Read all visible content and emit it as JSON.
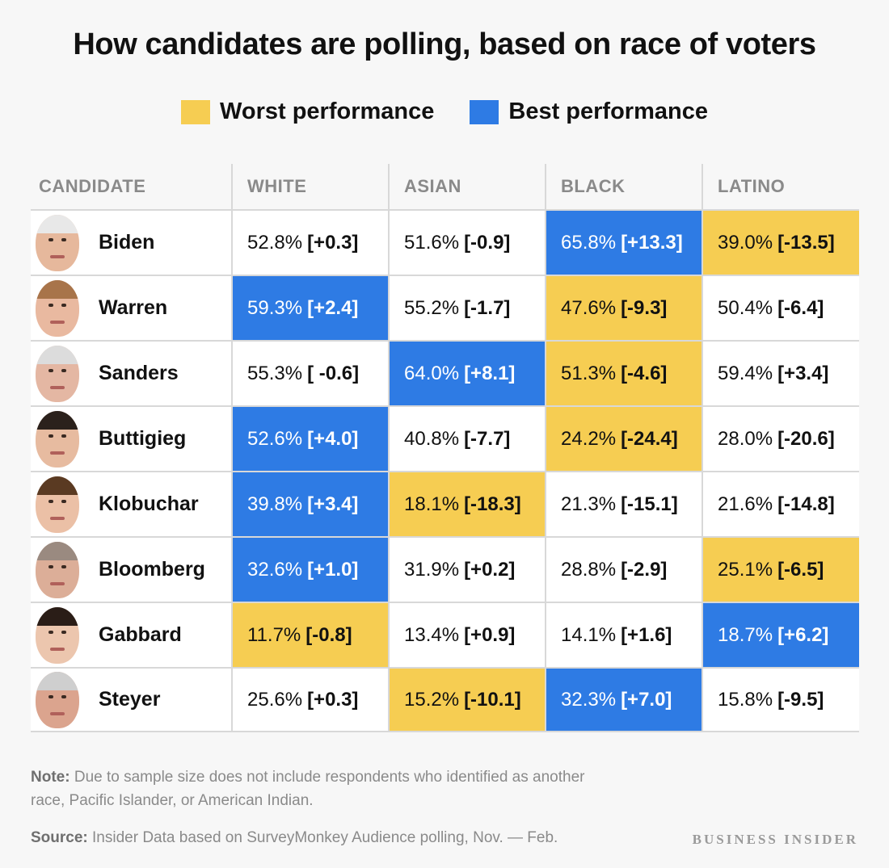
{
  "title": "How candidates are polling, based on race of voters",
  "legend": [
    {
      "label": "Worst performance",
      "color": "#f6cd52"
    },
    {
      "label": "Best performance",
      "color": "#2e7be4"
    }
  ],
  "chart_data": {
    "type": "table",
    "title": "How candidates are polling, based on race of voters",
    "columns": [
      "CANDIDATE",
      "WHITE",
      "ASIAN",
      "BLACK",
      "LATINO"
    ],
    "rows": [
      {
        "candidate": "Biden",
        "hair": "#e8e8e8",
        "skin": "#e6b89c",
        "cells": [
          {
            "value": "52.8%",
            "diff": "[+0.3]",
            "highlight": "none"
          },
          {
            "value": "51.6%",
            "diff": "[-0.9]",
            "highlight": "none"
          },
          {
            "value": "65.8%",
            "diff": "[+13.3]",
            "highlight": "best"
          },
          {
            "value": "39.0%",
            "diff": "[-13.5]",
            "highlight": "worst"
          }
        ]
      },
      {
        "candidate": "Warren",
        "hair": "#a8744a",
        "skin": "#e9b9a0",
        "cells": [
          {
            "value": "59.3%",
            "diff": "[+2.4]",
            "highlight": "best"
          },
          {
            "value": "55.2%",
            "diff": "[-1.7]",
            "highlight": "none"
          },
          {
            "value": "47.6%",
            "diff": "[-9.3]",
            "highlight": "worst"
          },
          {
            "value": "50.4%",
            "diff": "[-6.4]",
            "highlight": "none"
          }
        ]
      },
      {
        "candidate": "Sanders",
        "hair": "#dcdcdc",
        "skin": "#e4b7a3",
        "cells": [
          {
            "value": "55.3%",
            "diff": "[ -0.6]",
            "highlight": "none"
          },
          {
            "value": "64.0%",
            "diff": "[+8.1]",
            "highlight": "best"
          },
          {
            "value": "51.3%",
            "diff": "[-4.6]",
            "highlight": "worst"
          },
          {
            "value": "59.4%",
            "diff": "[+3.4]",
            "highlight": "none"
          }
        ]
      },
      {
        "candidate": "Buttigieg",
        "hair": "#2b211c",
        "skin": "#e7bba0",
        "cells": [
          {
            "value": "52.6%",
            "diff": "[+4.0]",
            "highlight": "best"
          },
          {
            "value": "40.8%",
            "diff": "[-7.7]",
            "highlight": "none"
          },
          {
            "value": "24.2%",
            "diff": "[-24.4]",
            "highlight": "worst"
          },
          {
            "value": "28.0%",
            "diff": "[-20.6]",
            "highlight": "none"
          }
        ]
      },
      {
        "candidate": "Klobuchar",
        "hair": "#5a3a22",
        "skin": "#ebc0a6",
        "cells": [
          {
            "value": "39.8%",
            "diff": "[+3.4]",
            "highlight": "best"
          },
          {
            "value": "18.1%",
            "diff": "[-18.3]",
            "highlight": "worst"
          },
          {
            "value": "21.3%",
            "diff": "[-15.1]",
            "highlight": "none"
          },
          {
            "value": "21.6%",
            "diff": "[-14.8]",
            "highlight": "none"
          }
        ]
      },
      {
        "candidate": "Bloomberg",
        "hair": "#9a8a80",
        "skin": "#dcae98",
        "cells": [
          {
            "value": "32.6%",
            "diff": "[+1.0]",
            "highlight": "best"
          },
          {
            "value": "31.9%",
            "diff": "[+0.2]",
            "highlight": "none"
          },
          {
            "value": "28.8%",
            "diff": "[-2.9]",
            "highlight": "none"
          },
          {
            "value": "25.1%",
            "diff": "[-6.5]",
            "highlight": "worst"
          }
        ]
      },
      {
        "candidate": "Gabbard",
        "hair": "#2a1d17",
        "skin": "#ecc6ae",
        "cells": [
          {
            "value": "11.7%",
            "diff": "[-0.8]",
            "highlight": "worst"
          },
          {
            "value": "13.4%",
            "diff": "[+0.9]",
            "highlight": "none"
          },
          {
            "value": "14.1%",
            "diff": "[+1.6]",
            "highlight": "none"
          },
          {
            "value": "18.7%",
            "diff": "[+6.2]",
            "highlight": "best"
          }
        ]
      },
      {
        "candidate": "Steyer",
        "hair": "#cfcfcf",
        "skin": "#dba48e",
        "cells": [
          {
            "value": "25.6%",
            "diff": "[+0.3]",
            "highlight": "none"
          },
          {
            "value": "15.2%",
            "diff": "[-10.1]",
            "highlight": "worst"
          },
          {
            "value": "32.3%",
            "diff": "[+7.0]",
            "highlight": "best"
          },
          {
            "value": "15.8%",
            "diff": "[-9.5]",
            "highlight": "none"
          }
        ]
      }
    ]
  },
  "note": {
    "label": "Note:",
    "text": "Due to sample size does not include respondents who identified as another race, Pacific Islander, or American Indian."
  },
  "source": {
    "label": "Source:",
    "text": "Insider Data based on SurveyMonkey Audience polling, Nov. — Feb."
  },
  "brand": "BUSINESS INSIDER"
}
